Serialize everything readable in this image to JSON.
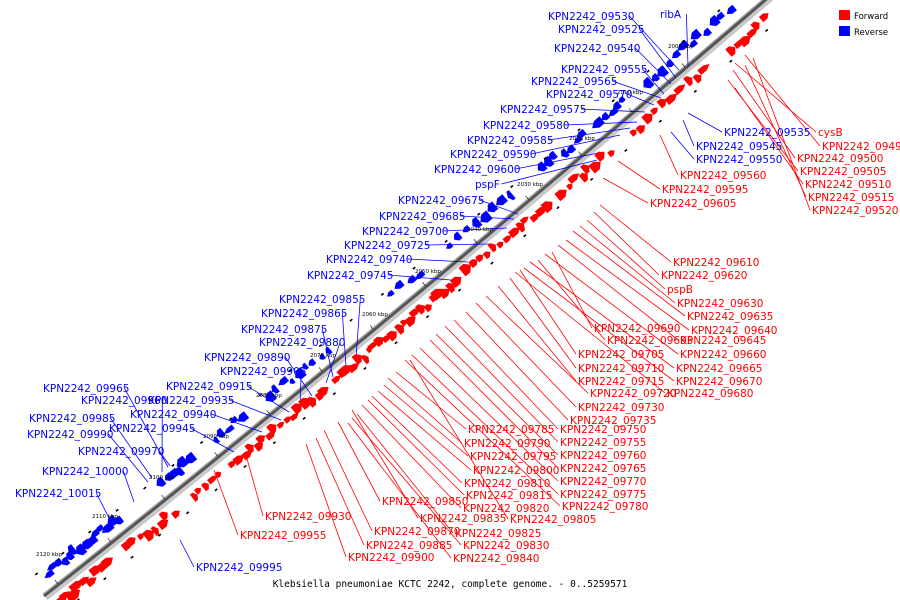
{
  "caption": "Klebsiella pneumoniae KCTC 2242, complete genome. - 0..5259571",
  "legend": {
    "forward_label": "Forward",
    "reverse_label": "Reverse",
    "forward_color": "#ff0000",
    "reverse_color": "#0000ff"
  },
  "ticks": [
    "2000 kbp",
    "2010 kbp",
    "2020 kbp",
    "2030 kbp",
    "2040 kbp",
    "2050 kbp",
    "2060 kbp",
    "2070 kbp",
    "2080 kbp",
    "2090 kbp",
    "2100 kbp",
    "2110 kbp",
    "2120 kbp"
  ],
  "reverse_genes": [
    "KPN2242_09530",
    "ribA",
    "KPN2242_09525",
    "KPN2242_09540",
    "KPN2242_09555",
    "KPN2242_09565",
    "KPN2242_09570",
    "KPN2242_09575",
    "KPN2242_09580",
    "KPN2242_09585",
    "KPN2242_09590",
    "KPN2242_09600",
    "pspF",
    "KPN2242_09675",
    "KPN2242_09685",
    "KPN2242_09700",
    "KPN2242_09725",
    "KPN2242_09740",
    "KPN2242_09745",
    "KPN2242_09855",
    "KPN2242_09865",
    "KPN2242_09875",
    "KPN2242_09880",
    "KPN2242_09890",
    "KPN2242_09905",
    "KPN2242_09915",
    "KPN2242_09965",
    "KPN2242_09935",
    "KPN2242_09960",
    "KPN2242_09940",
    "KPN2242_09985",
    "KPN2242_09945",
    "KPN2242_09990",
    "KPN2242_09970",
    "KPN2242_10000",
    "KPN2242_10015",
    "KPN2242_09535",
    "KPN2242_09545",
    "KPN2242_09550",
    "KPN2242_09995"
  ],
  "forward_genes": [
    "cysB",
    "KPN2242_09490",
    "KPN2242_09500",
    "KPN2242_09505",
    "KPN2242_09510",
    "KPN2242_09515",
    "KPN2242_09520",
    "KPN2242_09560",
    "KPN2242_09595",
    "KPN2242_09605",
    "KPN2242_09610",
    "KPN2242_09620",
    "pspB",
    "KPN2242_09630",
    "KPN2242_09635",
    "KPN2242_09640",
    "KPN2242_09690",
    "KPN2242_09645",
    "KPN2242_09695",
    "KPN2242_09660",
    "KPN2242_09705",
    "KPN2242_09665",
    "KPN2242_09710",
    "KPN2242_09670",
    "KPN2242_09715",
    "KPN2242_09680",
    "KPN2242_09720",
    "KPN2242_09730",
    "KPN2242_09735",
    "KPN2242_09785",
    "KPN2242_09750",
    "KPN2242_09790",
    "KPN2242_09755",
    "KPN2242_09795",
    "KPN2242_09760",
    "KPN2242_09800",
    "KPN2242_09765",
    "KPN2242_09810",
    "KPN2242_09770",
    "KPN2242_09815",
    "KPN2242_09775",
    "KPN2242_09850",
    "KPN2242_09820",
    "KPN2242_09780",
    "KPN2242_09835",
    "KPN2242_09805",
    "KPN2242_09930",
    "KPN2242_09825",
    "KPN2242_09870",
    "KPN2242_09830",
    "KPN2242_09955",
    "KPN2242_09885",
    "KPN2242_09840",
    "KPN2242_09900"
  ]
}
